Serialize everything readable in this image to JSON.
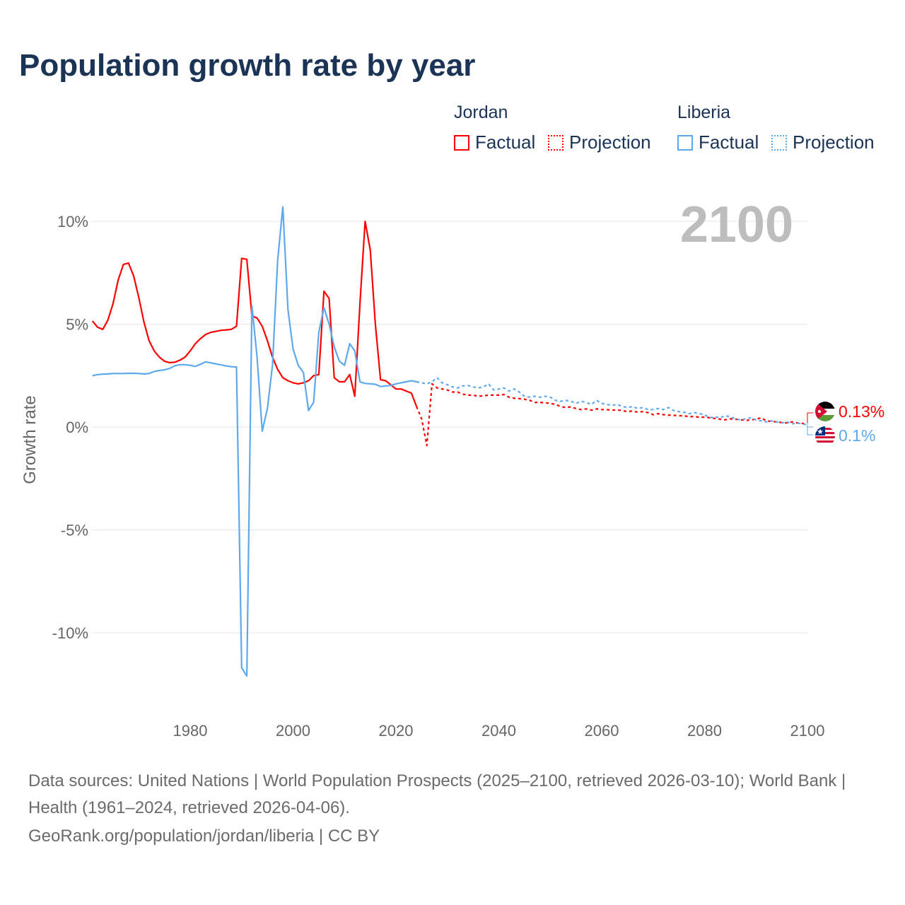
{
  "title": "Population growth rate by year",
  "legend": {
    "groups": [
      {
        "name": "Jordan",
        "factual": "Factual",
        "projection": "Projection",
        "color": "#ff0000"
      },
      {
        "name": "Liberia",
        "factual": "Factual",
        "projection": "Projection",
        "color": "#5ea8ec"
      }
    ]
  },
  "year_label": "2100",
  "end_labels": {
    "jordan": "0.13%",
    "liberia": "0.1%"
  },
  "footer": {
    "sources": "Data sources: United Nations | World Population Prospects (2025–2100, retrieved 2026-03-10); World Bank | Health (1961–2024, retrieved 2026-04-06).",
    "credit": "GeoRank.org/population/jordan/liberia | CC BY"
  },
  "chart_data": {
    "type": "line",
    "title": "Population growth rate by year",
    "xlabel": "",
    "ylabel": "Growth rate",
    "xlim": [
      1961,
      2100
    ],
    "ylim": [
      -12.5,
      11
    ],
    "x_ticks": [
      1980,
      2000,
      2020,
      2040,
      2060,
      2080,
      2100
    ],
    "x_tick_labels": [
      "1980",
      "2000",
      "2020",
      "2040",
      "2060",
      "2080",
      "2100"
    ],
    "y_ticks": [
      10,
      5,
      0,
      -5,
      -10
    ],
    "y_tick_labels": [
      "10%",
      "5%",
      "0%",
      "-5%",
      "-10%"
    ],
    "grid": true,
    "legend_position": "top-right",
    "series": [
      {
        "name": "Jordan",
        "kind": "Factual",
        "color": "#ff0000",
        "start": 1961,
        "values": [
          5.15,
          4.85,
          4.75,
          5.2,
          6.0,
          7.15,
          7.9,
          7.97,
          7.35,
          6.3,
          5.1,
          4.2,
          3.7,
          3.4,
          3.2,
          3.13,
          3.15,
          3.25,
          3.4,
          3.7,
          4.05,
          4.3,
          4.5,
          4.6,
          4.65,
          4.7,
          4.72,
          4.75,
          4.9,
          8.2,
          8.15,
          5.4,
          5.3,
          4.9,
          4.2,
          3.4,
          2.8,
          2.4,
          2.25,
          2.15,
          2.1,
          2.15,
          2.25,
          2.5,
          2.55,
          6.6,
          6.25,
          2.4,
          2.2,
          2.2,
          2.55,
          1.5,
          6.0,
          10.0,
          8.6,
          5.0,
          2.3,
          2.25,
          2.05,
          1.85,
          1.85,
          1.75,
          1.65,
          1.0
        ]
      },
      {
        "name": "Jordan",
        "kind": "Projection",
        "color": "#ff0000",
        "start": 2025,
        "values": [
          0.4,
          -0.9,
          2.1,
          1.9,
          1.85,
          1.8,
          1.7,
          1.7,
          1.6,
          1.55,
          1.55,
          1.5,
          1.52,
          1.55,
          1.55,
          1.55,
          1.58,
          1.45,
          1.4,
          1.38,
          1.35,
          1.3,
          1.2,
          1.2,
          1.18,
          1.15,
          1.1,
          1.0,
          0.95,
          0.98,
          0.9,
          0.85,
          0.88,
          0.82,
          0.88,
          0.85,
          0.85,
          0.82,
          0.83,
          0.8,
          0.75,
          0.78,
          0.72,
          0.75,
          0.7,
          0.6,
          0.65,
          0.6,
          0.58,
          0.57,
          0.55,
          0.55,
          0.5,
          0.52,
          0.47,
          0.48,
          0.45,
          0.42,
          0.38,
          0.35,
          0.4,
          0.38,
          0.35,
          0.32,
          0.35,
          0.38,
          0.45,
          0.3,
          0.28,
          0.25,
          0.22,
          0.2,
          0.25,
          0.2,
          0.18,
          0.13
        ]
      },
      {
        "name": "Liberia",
        "kind": "Factual",
        "color": "#5ea8ec",
        "start": 1961,
        "values": [
          2.5,
          2.55,
          2.57,
          2.58,
          2.6,
          2.6,
          2.6,
          2.61,
          2.61,
          2.6,
          2.58,
          2.6,
          2.7,
          2.75,
          2.78,
          2.85,
          2.98,
          3.03,
          3.03,
          3.0,
          2.95,
          3.05,
          3.17,
          3.12,
          3.07,
          3.02,
          2.97,
          2.93,
          2.92,
          -11.7,
          -12.1,
          5.9,
          3.4,
          -0.2,
          0.9,
          3.0,
          8.1,
          10.7,
          5.7,
          3.8,
          3.0,
          2.65,
          0.8,
          1.2,
          4.6,
          5.8,
          5.0,
          3.9,
          3.2,
          3.0,
          4.05,
          3.7,
          2.2,
          2.12,
          2.1,
          2.08,
          1.97,
          2.0,
          2.02,
          2.1,
          2.15,
          2.2,
          2.25,
          2.2
        ]
      },
      {
        "name": "Liberia",
        "kind": "Projection",
        "color": "#5ea8ec",
        "start": 2025,
        "values": [
          2.15,
          2.1,
          2.2,
          2.4,
          2.15,
          2.05,
          1.95,
          1.9,
          2.0,
          2.02,
          1.95,
          1.9,
          1.95,
          2.1,
          1.8,
          1.85,
          1.9,
          1.75,
          1.85,
          1.7,
          1.5,
          1.45,
          1.5,
          1.45,
          1.5,
          1.45,
          1.3,
          1.25,
          1.3,
          1.25,
          1.15,
          1.25,
          1.2,
          1.1,
          1.3,
          1.15,
          1.1,
          1.05,
          1.1,
          1.0,
          0.95,
          1.0,
          0.9,
          0.95,
          0.85,
          0.85,
          0.9,
          0.85,
          0.95,
          0.8,
          0.75,
          0.72,
          0.65,
          0.7,
          0.65,
          0.6,
          0.45,
          0.5,
          0.45,
          0.55,
          0.5,
          0.4,
          0.35,
          0.4,
          0.45,
          0.35,
          0.3,
          0.25,
          0.3,
          0.25,
          0.2,
          0.25,
          0.15,
          0.2,
          0.15,
          0.1
        ]
      }
    ]
  }
}
